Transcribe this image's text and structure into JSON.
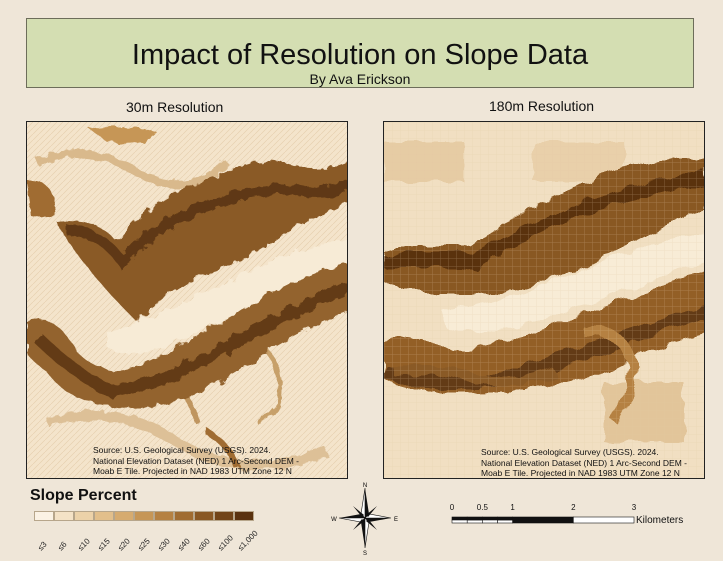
{
  "title": "Impact of Resolution on Slope Data",
  "subtitle": "By Ava Erickson",
  "panels": [
    {
      "label": "30m Resolution",
      "source": [
        "Source: U.S. Geological Survey (USGS). 2024.",
        "National Elevation Dataset (NED) 1 Arc-Second DEM -",
        "Moab E Tile. Projected in NAD 1983 UTM Zone 12 N"
      ]
    },
    {
      "label": "180m Resolution",
      "source": [
        "Source: U.S. Geological Survey (USGS). 2024.",
        "National Elevation Dataset (NED) 1 Arc-Second DEM -",
        "Moab E Tile. Projected in NAD 1983 UTM Zone 12 N"
      ]
    }
  ],
  "legend": {
    "title": "Slope Percent",
    "classes": [
      "≤3",
      "≤6",
      "≤10",
      "≤15",
      "≤20",
      "≤25",
      "≤30",
      "≤40",
      "≤60",
      "≤100",
      "≤1,000"
    ],
    "colors": [
      "#fbf2e4",
      "#f4e2c6",
      "#ecd2a9",
      "#e2bf8b",
      "#d6ab6f",
      "#c69656",
      "#b58142",
      "#a06c31",
      "#895824",
      "#714418",
      "#5a320f"
    ]
  },
  "compass": {
    "n": "N",
    "s": "S",
    "e": "E",
    "w": "W"
  },
  "scale": {
    "ticks": [
      "0",
      "0.5",
      "1",
      "2",
      "3"
    ],
    "tick_values": [
      0,
      0.5,
      1,
      2,
      3
    ],
    "units": "Kilometers"
  }
}
